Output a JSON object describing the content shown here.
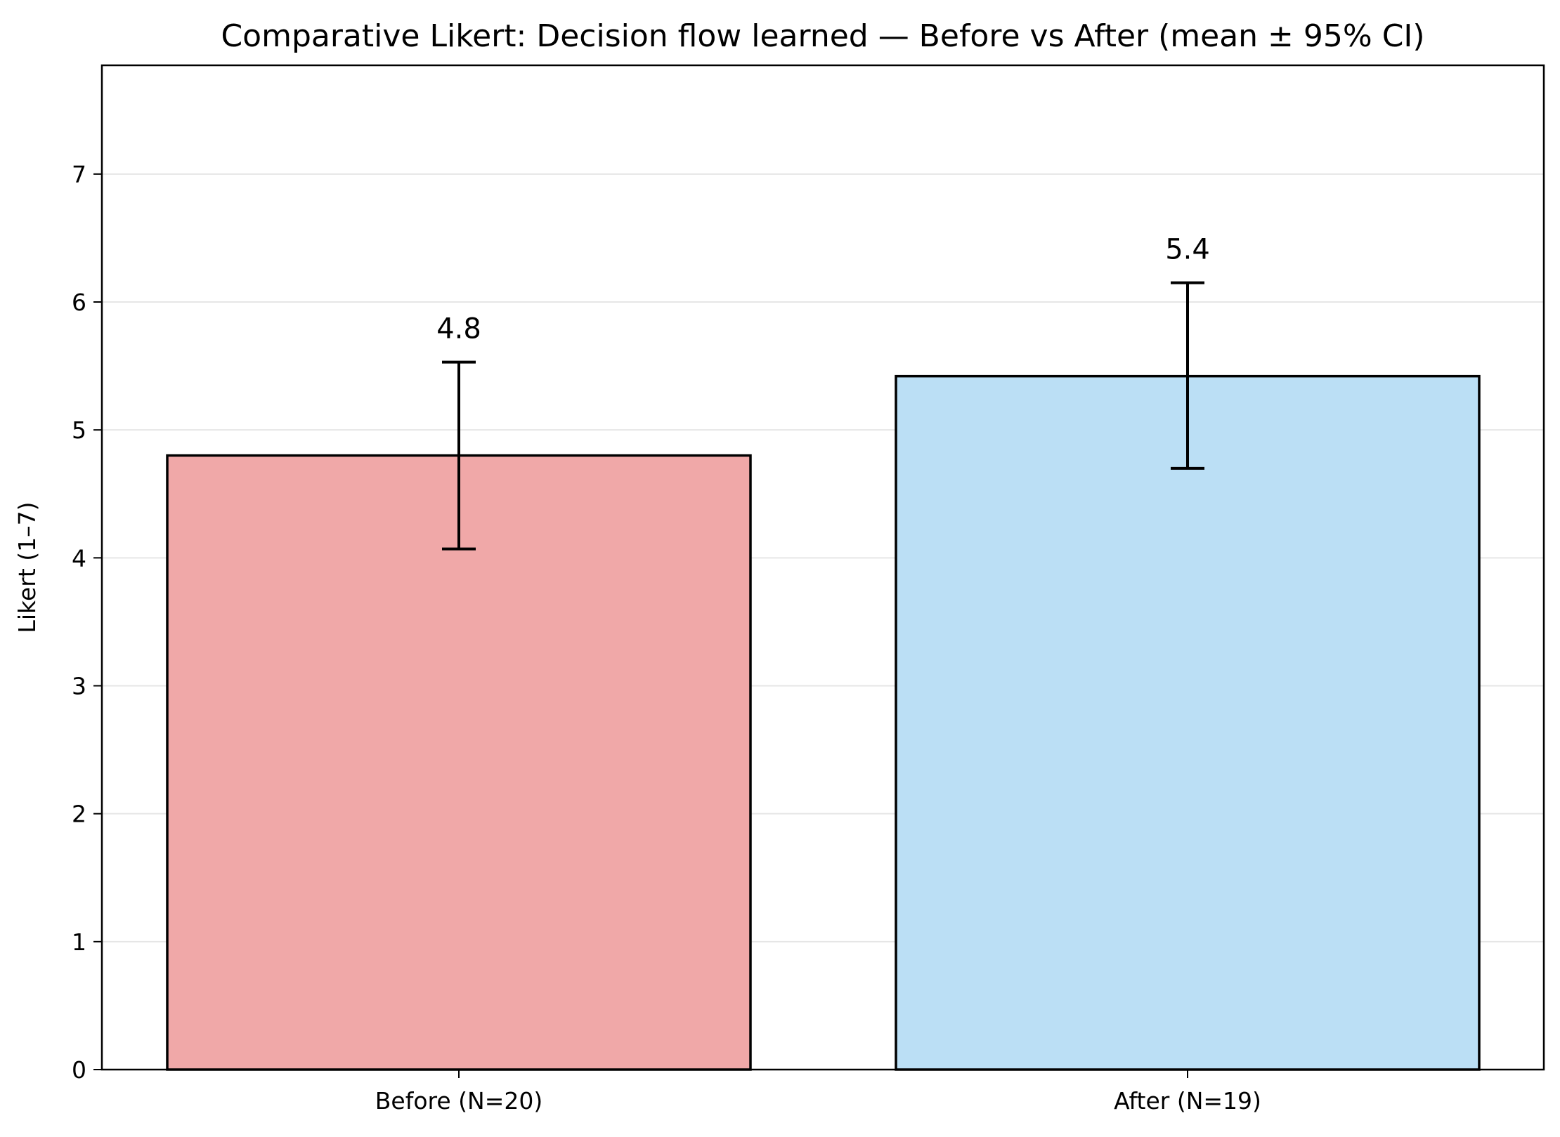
{
  "chart_data": {
    "type": "bar",
    "title": "Comparative Likert: Decision flow learned — Before vs After (mean ± 95% CI)",
    "xlabel": "",
    "ylabel": "Likert (1–7)",
    "categories": [
      "Before (N=20)",
      "After (N=19)"
    ],
    "values": [
      4.8,
      5.42
    ],
    "ci_lower": [
      4.07,
      4.7
    ],
    "ci_upper": [
      5.53,
      6.15
    ],
    "data_labels": [
      "4.8",
      "5.4"
    ],
    "bar_colors": [
      "#f0a8a8",
      "#bbdff5"
    ],
    "edge_color": "#000000",
    "ylim": [
      0,
      7.85
    ],
    "yticks": [
      0,
      1,
      2,
      3,
      4,
      5,
      6,
      7
    ],
    "grid": "horizontal",
    "grid_color": "#e6e6e6",
    "legend": "none"
  }
}
